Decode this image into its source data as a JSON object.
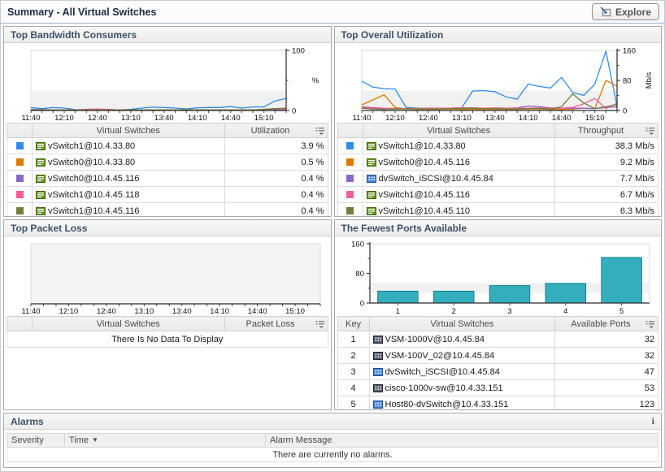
{
  "titlebar": {
    "title": "Summary - All Virtual Switches",
    "explore_label": "Explore"
  },
  "panels": {
    "bandwidth": {
      "title": "Top Bandwidth Consumers",
      "table": {
        "name_header": "Virtual Switches",
        "value_header": "Utilization",
        "rows": [
          {
            "color": "#2E8DE8",
            "icon": "vswitch",
            "name": "vSwitch1@10.4.33.80",
            "value": "3.9 %"
          },
          {
            "color": "#E07800",
            "icon": "vswitch",
            "name": "vSwitch0@10.4.33.80",
            "value": "0.5 %"
          },
          {
            "color": "#8B65C9",
            "icon": "vswitch",
            "name": "vSwitch0@10.4.45.116",
            "value": "0.4 %"
          },
          {
            "color": "#F95C93",
            "icon": "vswitch",
            "name": "vSwitch1@10.4.45.118",
            "value": "0.4 %"
          },
          {
            "color": "#6F8038",
            "icon": "vswitch",
            "name": "vSwitch1@10.4.45.116",
            "value": "0.4 %"
          }
        ]
      }
    },
    "utilization": {
      "title": "Top Overall Utilization",
      "table": {
        "name_header": "Virtual Switches",
        "value_header": "Throughput",
        "rows": [
          {
            "color": "#2E8DE8",
            "icon": "vswitch",
            "name": "vSwitch1@10.4.33.80",
            "value": "38.3 Mb/s"
          },
          {
            "color": "#E07800",
            "icon": "vswitch",
            "name": "vSwitch0@10.4.45.116",
            "value": "9.2 Mb/s"
          },
          {
            "color": "#8B65C9",
            "icon": "dvswitch",
            "name": "dvSwitch_iSCSI@10.4.45.84",
            "value": "7.7 Mb/s"
          },
          {
            "color": "#F95C93",
            "icon": "vswitch",
            "name": "vSwitch1@10.4.45.116",
            "value": "6.7 Mb/s"
          },
          {
            "color": "#6F8038",
            "icon": "vswitch",
            "name": "vSwitch1@10.4.45.110",
            "value": "6.3 Mb/s"
          }
        ]
      }
    },
    "packet_loss": {
      "title": "Top Packet Loss",
      "table": {
        "name_header": "Virtual Switches",
        "value_header": "Packet Loss",
        "empty_message": "There Is No Data To Display",
        "rows": []
      }
    },
    "ports": {
      "title": "The Fewest Ports Available",
      "table": {
        "key_header": "Key",
        "name_header": "Virtual Switches",
        "value_header": "Available Ports",
        "rows": [
          {
            "key": "1",
            "icon": "vsm",
            "name": "VSM-1000V@10.4.45.84",
            "value": "32"
          },
          {
            "key": "2",
            "icon": "vsm",
            "name": "VSM-100V_02@10.4.45.84",
            "value": "32"
          },
          {
            "key": "3",
            "icon": "dvswitch",
            "name": "dvSwitch_iSCSI@10.4.45.84",
            "value": "47"
          },
          {
            "key": "4",
            "icon": "vsm",
            "name": "cisco-1000v-sw@10.4.33.151",
            "value": "53"
          },
          {
            "key": "5",
            "icon": "dvswitch",
            "name": "Host80-dvSwitch@10.4.33.151",
            "value": "123"
          }
        ]
      }
    }
  },
  "alarms": {
    "title": "Alarms",
    "info_icon": "i",
    "headers": {
      "severity": "Severity",
      "time": "Time",
      "message": "Alarm Message"
    },
    "sort_arrow": "▼",
    "empty_message": "There are currently no alarms."
  },
  "chart_data": [
    {
      "id": "bandwidth",
      "type": "line",
      "title": "Top Bandwidth Consumers",
      "ylabel": "%",
      "ylabel_rotated": false,
      "ylim": [
        0,
        100
      ],
      "yticks": [
        0,
        100
      ],
      "x_labels": [
        "11:40",
        "12:10",
        "12:40",
        "13:10",
        "13:40",
        "14:10",
        "14:40",
        "15:10"
      ],
      "x_label_every": 3,
      "n_points": 24,
      "y_axis_side": "right",
      "grid": false,
      "legend": "table-below",
      "series": [
        {
          "name": "vSwitch1@10.4.33.80",
          "color": "#2E8DE8",
          "values": [
            5,
            3,
            5,
            4,
            1.5,
            1,
            1,
            1,
            1,
            2,
            4,
            5.5,
            5,
            4,
            2.5,
            4.5,
            5,
            5,
            6.5,
            4,
            6,
            6,
            16,
            20
          ]
        },
        {
          "name": "vSwitch0@10.4.33.80",
          "color": "#E07800",
          "values": [
            1,
            1,
            1,
            1,
            1,
            1,
            1.5,
            1.5,
            1,
            1,
            1,
            1,
            1,
            1,
            1,
            1,
            1,
            1,
            1,
            1,
            1,
            1,
            2,
            2
          ]
        },
        {
          "name": "vSwitch0@10.4.45.116",
          "color": "#8B65C9",
          "values": [
            2,
            1.5,
            1,
            1,
            1,
            1,
            1,
            1,
            1,
            1,
            1,
            1,
            1,
            1,
            1,
            1,
            1,
            1,
            1,
            1,
            1,
            1,
            1.5,
            1
          ]
        },
        {
          "name": "vSwitch1@10.4.45.118",
          "color": "#F95C93",
          "values": [
            1,
            1,
            1,
            1,
            1,
            2,
            2.5,
            2,
            1,
            1,
            1,
            1,
            1,
            1,
            1,
            1,
            1,
            1,
            1,
            1,
            1,
            2,
            3,
            2
          ]
        },
        {
          "name": "vSwitch1@10.4.45.116",
          "color": "#6F8038",
          "values": [
            1,
            1,
            1,
            1,
            1,
            1,
            1,
            1,
            1,
            1,
            1,
            1,
            1,
            1,
            1,
            1,
            1,
            1,
            1,
            1,
            1,
            2,
            3,
            4
          ]
        }
      ]
    },
    {
      "id": "utilization",
      "type": "line",
      "title": "Top Overall Utilization",
      "ylabel": "Mb/s",
      "ylabel_rotated": true,
      "ylim": [
        0,
        160
      ],
      "yticks": [
        0,
        80,
        160
      ],
      "x_labels": [
        "11:40",
        "12:10",
        "12:40",
        "13:10",
        "13:40",
        "14:10",
        "14:40",
        "15:10"
      ],
      "x_label_every": 3,
      "n_points": 24,
      "y_axis_side": "right",
      "grid": false,
      "legend": "table-below",
      "series": [
        {
          "name": "vSwitch1@10.4.33.80",
          "color": "#2E8DE8",
          "values": [
            78,
            62,
            58,
            57,
            8,
            6,
            5,
            6,
            6,
            7,
            52,
            53,
            50,
            36,
            30,
            70,
            64,
            60,
            88,
            48,
            40,
            70,
            158,
            12
          ]
        },
        {
          "name": "vSwitch0@10.4.45.116",
          "color": "#E07800",
          "values": [
            15,
            28,
            42,
            8,
            4,
            3,
            3,
            3,
            4,
            3,
            3,
            3,
            3,
            3,
            3,
            4,
            4,
            3,
            3,
            4,
            6,
            5,
            80,
            65
          ]
        },
        {
          "name": "dvSwitch_iSCSI@10.4.45.84",
          "color": "#8B65C9",
          "values": [
            8,
            6,
            5,
            5,
            5,
            5,
            6,
            6,
            6,
            7,
            7,
            6,
            6,
            6,
            7,
            12,
            10,
            7,
            6,
            6,
            6,
            5,
            8,
            10
          ]
        },
        {
          "name": "vSwitch1@10.4.45.116",
          "color": "#F95C93",
          "values": [
            10,
            8,
            6,
            5,
            5,
            5,
            6,
            6,
            6,
            7,
            6,
            6,
            7,
            6,
            6,
            6,
            7,
            6,
            6,
            8,
            18,
            32,
            5,
            20
          ]
        },
        {
          "name": "vSwitch1@10.4.45.110",
          "color": "#6F8038",
          "values": [
            6,
            4,
            3,
            4,
            4,
            4,
            4,
            4,
            5,
            5,
            6,
            5,
            5,
            4,
            4,
            5,
            5,
            4,
            10,
            44,
            20,
            5,
            10,
            16
          ]
        }
      ]
    },
    {
      "id": "packet_loss",
      "type": "line",
      "title": "Top Packet Loss",
      "ylabel": "",
      "ylim": [
        0,
        100
      ],
      "yticks": [],
      "x_labels": [
        "11:40",
        "12:10",
        "12:40",
        "13:10",
        "13:40",
        "14:10",
        "14:40",
        "15:10"
      ],
      "x_label_every": 3,
      "n_points": 24,
      "y_axis_side": "none",
      "grid": false,
      "empty": true,
      "series": []
    },
    {
      "id": "ports",
      "type": "bar",
      "title": "The Fewest Ports Available",
      "ylabel": "",
      "ylim": [
        0,
        160
      ],
      "yticks": [
        0,
        80,
        160
      ],
      "y_axis_side": "left",
      "grid": false,
      "categories": [
        "1",
        "2",
        "3",
        "4",
        "5"
      ],
      "values": [
        32,
        32,
        47,
        53,
        123
      ],
      "bar_color": "#35AEBD",
      "bar_border": "#17808F"
    }
  ]
}
